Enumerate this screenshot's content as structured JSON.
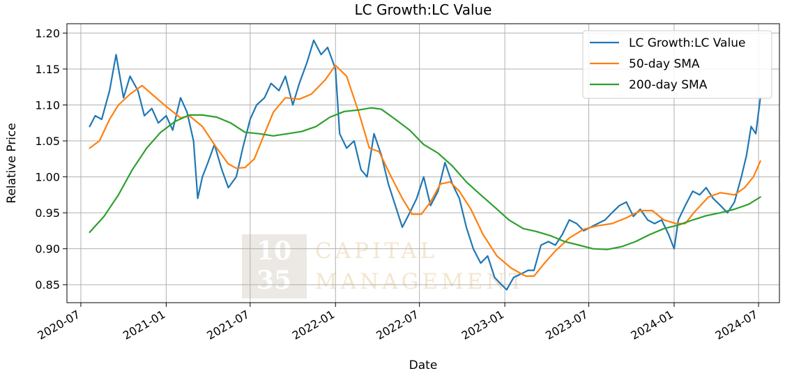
{
  "chart_data": {
    "type": "line",
    "title": "LC Growth:LC Value",
    "xlabel": "Date",
    "ylabel": "Relative Price",
    "xlim": [
      "2020-06-01",
      "2024-08-15"
    ],
    "ylim": [
      0.825,
      1.213
    ],
    "x_ticks": [
      "2020-07",
      "2021-01",
      "2021-07",
      "2022-01",
      "2022-07",
      "2023-01",
      "2023-07",
      "2024-01",
      "2024-07"
    ],
    "y_ticks": [
      "0.85",
      "0.90",
      "0.95",
      "1.00",
      "1.05",
      "1.10",
      "1.15",
      "1.20"
    ],
    "grid": true,
    "legend_position": "top-right",
    "watermark": {
      "number_top": "10",
      "number_bottom": "35",
      "line1": "CAPITAL",
      "line2": "MANAGEMENT"
    },
    "series": [
      {
        "name": "LC Growth:LC Value",
        "color": "#1f77b4",
        "points": [
          [
            "2020-07-20",
            1.07
          ],
          [
            "2020-08-01",
            1.085
          ],
          [
            "2020-08-15",
            1.08
          ],
          [
            "2020-09-01",
            1.12
          ],
          [
            "2020-09-15",
            1.17
          ],
          [
            "2020-10-01",
            1.11
          ],
          [
            "2020-10-15",
            1.14
          ],
          [
            "2020-11-01",
            1.12
          ],
          [
            "2020-11-15",
            1.085
          ],
          [
            "2020-12-01",
            1.095
          ],
          [
            "2020-12-15",
            1.075
          ],
          [
            "2021-01-01",
            1.085
          ],
          [
            "2021-01-15",
            1.065
          ],
          [
            "2021-02-01",
            1.11
          ],
          [
            "2021-02-15",
            1.09
          ],
          [
            "2021-03-01",
            1.05
          ],
          [
            "2021-03-10",
            0.97
          ],
          [
            "2021-03-20",
            1.0
          ],
          [
            "2021-04-01",
            1.02
          ],
          [
            "2021-04-15",
            1.045
          ],
          [
            "2021-05-01",
            1.01
          ],
          [
            "2021-05-15",
            0.985
          ],
          [
            "2021-06-01",
            1.0
          ],
          [
            "2021-06-15",
            1.04
          ],
          [
            "2021-07-01",
            1.08
          ],
          [
            "2021-07-15",
            1.1
          ],
          [
            "2021-08-01",
            1.11
          ],
          [
            "2021-08-15",
            1.13
          ],
          [
            "2021-09-01",
            1.12
          ],
          [
            "2021-09-15",
            1.14
          ],
          [
            "2021-10-01",
            1.1
          ],
          [
            "2021-10-15",
            1.13
          ],
          [
            "2021-11-01",
            1.16
          ],
          [
            "2021-11-15",
            1.19
          ],
          [
            "2021-12-01",
            1.17
          ],
          [
            "2021-12-15",
            1.18
          ],
          [
            "2022-01-01",
            1.15
          ],
          [
            "2022-01-10",
            1.06
          ],
          [
            "2022-01-25",
            1.04
          ],
          [
            "2022-02-10",
            1.05
          ],
          [
            "2022-02-25",
            1.01
          ],
          [
            "2022-03-10",
            1.0
          ],
          [
            "2022-03-25",
            1.06
          ],
          [
            "2022-04-10",
            1.03
          ],
          [
            "2022-04-25",
            0.99
          ],
          [
            "2022-05-10",
            0.96
          ],
          [
            "2022-05-25",
            0.93
          ],
          [
            "2022-06-10",
            0.95
          ],
          [
            "2022-06-25",
            0.97
          ],
          [
            "2022-07-10",
            1.0
          ],
          [
            "2022-07-25",
            0.96
          ],
          [
            "2022-08-10",
            0.98
          ],
          [
            "2022-08-25",
            1.02
          ],
          [
            "2022-09-10",
            0.99
          ],
          [
            "2022-09-25",
            0.97
          ],
          [
            "2022-10-10",
            0.93
          ],
          [
            "2022-10-25",
            0.9
          ],
          [
            "2022-11-10",
            0.88
          ],
          [
            "2022-11-25",
            0.89
          ],
          [
            "2022-12-10",
            0.86
          ],
          [
            "2022-12-25",
            0.85
          ],
          [
            "2023-01-05",
            0.843
          ],
          [
            "2023-01-20",
            0.86
          ],
          [
            "2023-02-05",
            0.865
          ],
          [
            "2023-02-20",
            0.87
          ],
          [
            "2023-03-05",
            0.87
          ],
          [
            "2023-03-20",
            0.905
          ],
          [
            "2023-04-05",
            0.91
          ],
          [
            "2023-04-20",
            0.905
          ],
          [
            "2023-05-05",
            0.92
          ],
          [
            "2023-05-20",
            0.94
          ],
          [
            "2023-06-05",
            0.935
          ],
          [
            "2023-06-20",
            0.925
          ],
          [
            "2023-07-05",
            0.93
          ],
          [
            "2023-07-20",
            0.935
          ],
          [
            "2023-08-05",
            0.94
          ],
          [
            "2023-08-20",
            0.95
          ],
          [
            "2023-09-05",
            0.96
          ],
          [
            "2023-09-20",
            0.965
          ],
          [
            "2023-10-05",
            0.945
          ],
          [
            "2023-10-20",
            0.955
          ],
          [
            "2023-11-05",
            0.94
          ],
          [
            "2023-11-20",
            0.935
          ],
          [
            "2023-12-05",
            0.94
          ],
          [
            "2023-12-20",
            0.92
          ],
          [
            "2024-01-01",
            0.9
          ],
          [
            "2024-01-10",
            0.94
          ],
          [
            "2024-01-25",
            0.96
          ],
          [
            "2024-02-10",
            0.98
          ],
          [
            "2024-02-25",
            0.975
          ],
          [
            "2024-03-10",
            0.985
          ],
          [
            "2024-03-25",
            0.97
          ],
          [
            "2024-04-10",
            0.96
          ],
          [
            "2024-04-25",
            0.95
          ],
          [
            "2024-05-10",
            0.965
          ],
          [
            "2024-05-25",
            1.0
          ],
          [
            "2024-06-05",
            1.03
          ],
          [
            "2024-06-15",
            1.07
          ],
          [
            "2024-06-25",
            1.06
          ],
          [
            "2024-07-05",
            1.11
          ]
        ]
      },
      {
        "name": "50-day SMA",
        "color": "#ff7f0e",
        "points": [
          [
            "2020-07-20",
            1.04
          ],
          [
            "2020-08-10",
            1.05
          ],
          [
            "2020-09-01",
            1.08
          ],
          [
            "2020-09-20",
            1.1
          ],
          [
            "2020-10-15",
            1.115
          ],
          [
            "2020-11-10",
            1.127
          ],
          [
            "2020-12-01",
            1.115
          ],
          [
            "2021-01-01",
            1.098
          ],
          [
            "2021-02-01",
            1.082
          ],
          [
            "2021-02-20",
            1.085
          ],
          [
            "2021-03-20",
            1.07
          ],
          [
            "2021-04-20",
            1.04
          ],
          [
            "2021-05-15",
            1.018
          ],
          [
            "2021-06-01",
            1.012
          ],
          [
            "2021-06-20",
            1.013
          ],
          [
            "2021-07-10",
            1.025
          ],
          [
            "2021-08-01",
            1.06
          ],
          [
            "2021-08-20",
            1.09
          ],
          [
            "2021-09-15",
            1.11
          ],
          [
            "2021-10-15",
            1.108
          ],
          [
            "2021-11-10",
            1.115
          ],
          [
            "2021-12-10",
            1.135
          ],
          [
            "2022-01-01",
            1.155
          ],
          [
            "2022-01-25",
            1.14
          ],
          [
            "2022-02-20",
            1.09
          ],
          [
            "2022-03-15",
            1.04
          ],
          [
            "2022-04-05",
            1.035
          ],
          [
            "2022-05-01",
            1.0
          ],
          [
            "2022-05-25",
            0.97
          ],
          [
            "2022-06-15",
            0.948
          ],
          [
            "2022-07-05",
            0.948
          ],
          [
            "2022-07-25",
            0.965
          ],
          [
            "2022-08-15",
            0.99
          ],
          [
            "2022-09-05",
            0.993
          ],
          [
            "2022-09-25",
            0.98
          ],
          [
            "2022-10-20",
            0.955
          ],
          [
            "2022-11-15",
            0.92
          ],
          [
            "2022-12-15",
            0.89
          ],
          [
            "2023-01-15",
            0.873
          ],
          [
            "2023-02-15",
            0.862
          ],
          [
            "2023-03-05",
            0.862
          ],
          [
            "2023-03-25",
            0.878
          ],
          [
            "2023-04-20",
            0.897
          ],
          [
            "2023-05-20",
            0.915
          ],
          [
            "2023-06-20",
            0.927
          ],
          [
            "2023-07-20",
            0.932
          ],
          [
            "2023-08-20",
            0.935
          ],
          [
            "2023-09-20",
            0.943
          ],
          [
            "2023-10-20",
            0.953
          ],
          [
            "2023-11-15",
            0.953
          ],
          [
            "2023-12-10",
            0.94
          ],
          [
            "2024-01-05",
            0.935
          ],
          [
            "2024-01-25",
            0.935
          ],
          [
            "2024-02-15",
            0.952
          ],
          [
            "2024-03-15",
            0.972
          ],
          [
            "2024-04-10",
            0.978
          ],
          [
            "2024-05-10",
            0.975
          ],
          [
            "2024-06-01",
            0.985
          ],
          [
            "2024-06-20",
            1.0
          ],
          [
            "2024-07-05",
            1.022
          ]
        ]
      },
      {
        "name": "200-day SMA",
        "color": "#2ca02c",
        "points": [
          [
            "2020-07-20",
            0.923
          ],
          [
            "2020-08-20",
            0.945
          ],
          [
            "2020-09-20",
            0.975
          ],
          [
            "2020-10-20",
            1.01
          ],
          [
            "2020-11-20",
            1.04
          ],
          [
            "2020-12-20",
            1.062
          ],
          [
            "2021-01-20",
            1.077
          ],
          [
            "2021-02-20",
            1.086
          ],
          [
            "2021-03-20",
            1.086
          ],
          [
            "2021-04-20",
            1.083
          ],
          [
            "2021-05-20",
            1.075
          ],
          [
            "2021-06-20",
            1.062
          ],
          [
            "2021-07-20",
            1.06
          ],
          [
            "2021-08-20",
            1.057
          ],
          [
            "2021-09-20",
            1.06
          ],
          [
            "2021-10-20",
            1.063
          ],
          [
            "2021-11-20",
            1.07
          ],
          [
            "2021-12-20",
            1.083
          ],
          [
            "2022-01-20",
            1.091
          ],
          [
            "2022-02-20",
            1.093
          ],
          [
            "2022-03-20",
            1.096
          ],
          [
            "2022-04-10",
            1.094
          ],
          [
            "2022-05-10",
            1.08
          ],
          [
            "2022-06-10",
            1.065
          ],
          [
            "2022-07-10",
            1.045
          ],
          [
            "2022-08-10",
            1.033
          ],
          [
            "2022-09-10",
            1.015
          ],
          [
            "2022-10-10",
            0.993
          ],
          [
            "2022-11-10",
            0.975
          ],
          [
            "2022-12-10",
            0.958
          ],
          [
            "2023-01-10",
            0.94
          ],
          [
            "2023-02-10",
            0.928
          ],
          [
            "2023-03-10",
            0.924
          ],
          [
            "2023-04-10",
            0.918
          ],
          [
            "2023-05-10",
            0.91
          ],
          [
            "2023-06-10",
            0.905
          ],
          [
            "2023-07-10",
            0.9
          ],
          [
            "2023-08-10",
            0.899
          ],
          [
            "2023-09-10",
            0.903
          ],
          [
            "2023-10-10",
            0.91
          ],
          [
            "2023-11-10",
            0.92
          ],
          [
            "2023-12-10",
            0.928
          ],
          [
            "2024-01-10",
            0.933
          ],
          [
            "2024-02-10",
            0.94
          ],
          [
            "2024-03-10",
            0.946
          ],
          [
            "2024-04-10",
            0.95
          ],
          [
            "2024-05-10",
            0.955
          ],
          [
            "2024-06-10",
            0.962
          ],
          [
            "2024-07-05",
            0.972
          ]
        ]
      }
    ]
  }
}
